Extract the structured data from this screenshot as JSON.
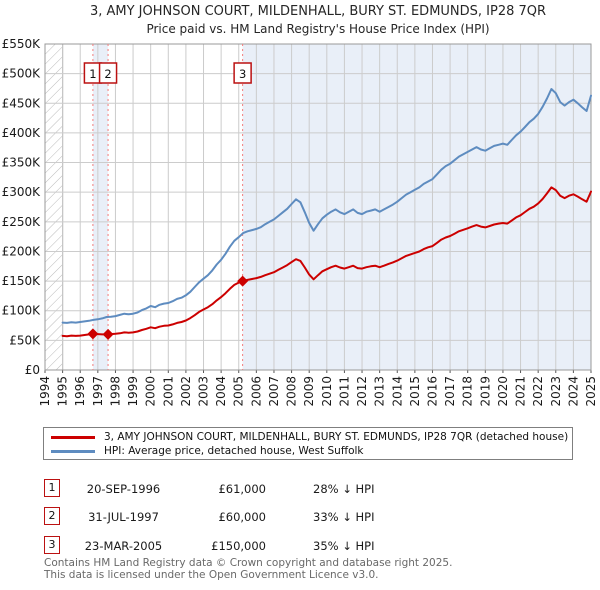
{
  "chart_data": {
    "type": "line",
    "title": "3, AMY JOHNSON COURT, MILDENHALL, BURY ST. EDMUNDS, IP28 7QR",
    "subtitle": "Price paid vs. HM Land Registry's House Price Index (HPI)",
    "x_axis": {
      "min": 1994,
      "max": 2025,
      "ticks": [
        1994,
        1995,
        1996,
        1997,
        1998,
        1999,
        2000,
        2001,
        2002,
        2003,
        2004,
        2005,
        2006,
        2007,
        2008,
        2009,
        2010,
        2011,
        2012,
        2013,
        2014,
        2015,
        2016,
        2017,
        2018,
        2019,
        2020,
        2021,
        2022,
        2023,
        2024,
        2025
      ]
    },
    "y_axis": {
      "min": 0,
      "max": 550000,
      "tick_step": 50000,
      "tick_labels": [
        "£0",
        "£50K",
        "£100K",
        "£150K",
        "£200K",
        "£250K",
        "£300K",
        "£350K",
        "£400K",
        "£450K",
        "£500K",
        "£550K"
      ]
    },
    "no_data_hatch_until": 1995,
    "ownership_bands": [
      [
        1996.72,
        1997.58
      ],
      [
        2005.22,
        2025
      ]
    ],
    "transactions": [
      {
        "n": "1",
        "x": 1996.72,
        "price": 61000
      },
      {
        "n": "2",
        "x": 1997.58,
        "price": 60000
      },
      {
        "n": "3",
        "x": 2005.22,
        "price": 150000
      }
    ],
    "series": [
      {
        "name": "price-paid",
        "label": "3, AMY JOHNSON COURT, MILDENHALL, BURY ST. EDMUNDS, IP28 7QR (detached house)",
        "color": "#cc0000",
        "start": 1995,
        "step": 0.25,
        "values": [
          57500,
          57000,
          58000,
          57500,
          58000,
          59000,
          60000,
          61000,
          60500,
          60000,
          60000,
          60500,
          61000,
          62000,
          63500,
          63000,
          63500,
          65000,
          67500,
          69500,
          72000,
          70500,
          73000,
          74500,
          75000,
          77000,
          79500,
          81000,
          83500,
          87500,
          92500,
          98000,
          102000,
          106000,
          111000,
          117500,
          123000,
          129500,
          137000,
          143500,
          147500,
          150000,
          152000,
          153500,
          155000,
          157000,
          160000,
          162500,
          165000,
          169000,
          173000,
          177000,
          182000,
          187000,
          184000,
          173000,
          161000,
          153000,
          160000,
          166500,
          170000,
          173500,
          176000,
          173000,
          171000,
          173500,
          176000,
          172000,
          171000,
          173500,
          175000,
          176000,
          173500,
          176000,
          179000,
          181500,
          184500,
          188500,
          192500,
          195000,
          197500,
          200000,
          204000,
          207000,
          209000,
          214500,
          220000,
          223500,
          226000,
          230000,
          234000,
          236500,
          239000,
          242000,
          244500,
          242000,
          240500,
          243000,
          245500,
          247000,
          248000,
          247000,
          252000,
          257500,
          261000,
          266500,
          272000,
          275500,
          281000,
          288500,
          298000,
          308000,
          303500,
          294000,
          290000,
          294000,
          296500,
          292500,
          288000,
          284000,
          301000
        ]
      },
      {
        "name": "hpi",
        "label": "HPI: Average price, detached house, West Suffolk",
        "color": "#5e8cc0",
        "start": 1995,
        "step": 0.25,
        "values": [
          80000,
          79500,
          80500,
          80000,
          81000,
          82000,
          83000,
          84500,
          85500,
          87000,
          89500,
          90000,
          91000,
          93000,
          95000,
          94000,
          95000,
          97000,
          101000,
          104000,
          108000,
          106000,
          110000,
          112000,
          113000,
          116000,
          120000,
          122000,
          126000,
          132000,
          140000,
          148000,
          154000,
          160000,
          168000,
          178000,
          186000,
          196000,
          208000,
          218000,
          224000,
          231000,
          234000,
          236000,
          238000,
          241000,
          246000,
          250000,
          254000,
          260000,
          266000,
          272000,
          280000,
          288000,
          283000,
          266000,
          248000,
          235000,
          246000,
          256000,
          262000,
          267000,
          271000,
          266000,
          263000,
          267000,
          271000,
          265000,
          263000,
          267000,
          269000,
          271000,
          267000,
          271000,
          275000,
          279000,
          284000,
          290000,
          296000,
          300000,
          304000,
          308000,
          314000,
          318000,
          322000,
          330000,
          338000,
          344000,
          348000,
          354000,
          360000,
          364000,
          368000,
          372000,
          376000,
          372000,
          370000,
          374000,
          378000,
          380000,
          382000,
          380000,
          388000,
          396000,
          402000,
          410000,
          418000,
          424000,
          432000,
          444000,
          458000,
          474000,
          467000,
          452000,
          446000,
          452000,
          456000,
          450000,
          443000,
          437000,
          463000
        ]
      }
    ],
    "colors": {
      "price": "#cc0000",
      "hpi": "#5e8cc0",
      "dashed": "#f47c7c",
      "band": "#e9eff8",
      "grid": "#cccccc",
      "hatch": "#bbbbbb",
      "border": "#999999"
    }
  },
  "table": {
    "rows": [
      {
        "n": "1",
        "date": "20-SEP-1996",
        "price": "£61,000",
        "vs_hpi": "28% ↓ HPI"
      },
      {
        "n": "2",
        "date": "31-JUL-1997",
        "price": "£60,000",
        "vs_hpi": "33% ↓ HPI"
      },
      {
        "n": "3",
        "date": "23-MAR-2005",
        "price": "£150,000",
        "vs_hpi": "35% ↓ HPI"
      }
    ]
  },
  "footer": {
    "line1": "Contains HM Land Registry data © Crown copyright and database right 2025.",
    "line2": "This data is licensed under the Open Government Licence v3.0."
  }
}
